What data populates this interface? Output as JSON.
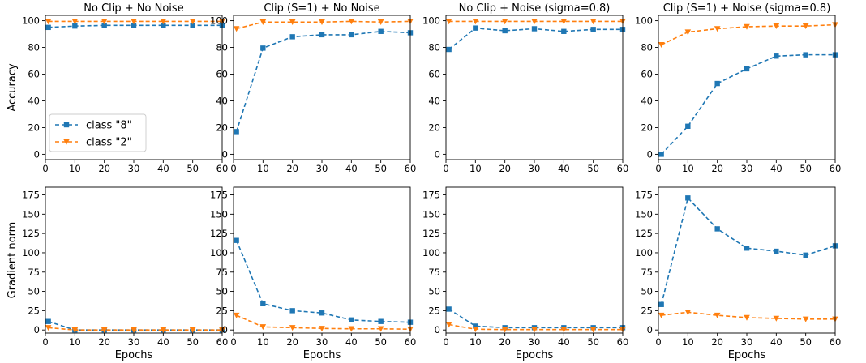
{
  "chart_data": {
    "type": "line",
    "layout_grid": "2 rows x 4 columns",
    "x": [
      1,
      10,
      20,
      30,
      40,
      50,
      60
    ],
    "xlabel": "Epochs",
    "xlim": [
      0,
      60
    ],
    "xticks": [
      0,
      10,
      20,
      30,
      40,
      50,
      60
    ],
    "rows": [
      {
        "ylabel": "Accuracy",
        "ylim": [
          -4,
          104
        ],
        "yticks": [
          0,
          20,
          40,
          60,
          80,
          100
        ]
      },
      {
        "ylabel": "Gradient norm",
        "ylim": [
          -4,
          185
        ],
        "yticks": [
          0,
          25,
          50,
          75,
          100,
          125,
          150,
          175
        ]
      }
    ],
    "legend": {
      "placement": "lower-left of first panel",
      "entries": [
        {
          "label": "class \"8\"",
          "color": "#1f77b4",
          "marker": "square",
          "linestyle": "dashed"
        },
        {
          "label": "class \"2\"",
          "color": "#ff7f0e",
          "marker": "triangle-down",
          "linestyle": "dashed"
        }
      ]
    },
    "panels": [
      {
        "row": 0,
        "col": 0,
        "title": "No Clip + No Noise",
        "series": [
          {
            "name": "class \"8\"",
            "values": [
              95,
              96,
              96.5,
              96.5,
              96.5,
              96.5,
              96.5
            ]
          },
          {
            "name": "class \"2\"",
            "values": [
              99.5,
              99.5,
              99.5,
              99.5,
              99.5,
              99.5,
              99.5
            ]
          }
        ]
      },
      {
        "row": 0,
        "col": 1,
        "title": "Clip (S=1) + No Noise",
        "series": [
          {
            "name": "class \"8\"",
            "values": [
              17,
              79.5,
              88,
              89.5,
              89.5,
              92,
              91
            ]
          },
          {
            "name": "class \"2\"",
            "values": [
              94,
              99,
              99,
              99,
              99.5,
              99,
              99.5
            ]
          }
        ]
      },
      {
        "row": 0,
        "col": 2,
        "title": "No Clip + Noise (sigma=0.8)",
        "series": [
          {
            "name": "class \"8\"",
            "values": [
              78.5,
              94.5,
              92.5,
              94,
              92,
              93.5,
              93.5
            ]
          },
          {
            "name": "class \"2\"",
            "values": [
              99.5,
              99.5,
              99.5,
              99.5,
              99.5,
              99.5,
              99.5
            ]
          }
        ]
      },
      {
        "row": 0,
        "col": 3,
        "title": "Clip (S=1) + Noise (sigma=0.8)",
        "series": [
          {
            "name": "class \"8\"",
            "values": [
              0,
              21,
              53,
              64,
              73.5,
              74.5,
              74.5
            ]
          },
          {
            "name": "class \"2\"",
            "values": [
              82,
              91.5,
              94,
              95.5,
              96,
              96,
              97
            ]
          }
        ]
      },
      {
        "row": 1,
        "col": 0,
        "title": "",
        "series": [
          {
            "name": "class \"8\"",
            "values": [
              11,
              0,
              0,
              0,
              0,
              0,
              0
            ]
          },
          {
            "name": "class \"2\"",
            "values": [
              3,
              0,
              0,
              0,
              0,
              0,
              0
            ]
          }
        ]
      },
      {
        "row": 1,
        "col": 1,
        "title": "",
        "series": [
          {
            "name": "class \"8\"",
            "values": [
              116,
              34,
              25,
              22,
              13,
              11,
              10
            ]
          },
          {
            "name": "class \"2\"",
            "values": [
              19,
              4,
              3,
              2,
              1.5,
              1.5,
              1
            ]
          }
        ]
      },
      {
        "row": 1,
        "col": 2,
        "title": "",
        "series": [
          {
            "name": "class \"8\"",
            "values": [
              27,
              5,
              3,
              3,
              3,
              3,
              3
            ]
          },
          {
            "name": "class \"2\"",
            "values": [
              7,
              1,
              0.5,
              0.5,
              0.5,
              0.5,
              0.5
            ]
          }
        ]
      },
      {
        "row": 1,
        "col": 3,
        "title": "",
        "series": [
          {
            "name": "class \"8\"",
            "values": [
              33,
              171,
              131,
              106,
              102,
              97,
              109
            ]
          },
          {
            "name": "class \"2\"",
            "values": [
              19,
              23,
              19,
              16,
              15,
              14,
              14
            ]
          }
        ]
      }
    ]
  }
}
